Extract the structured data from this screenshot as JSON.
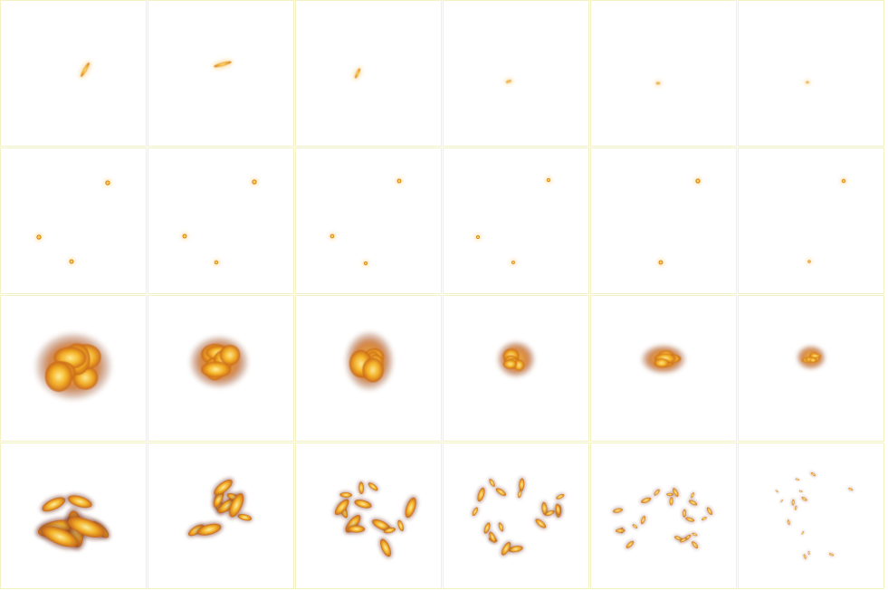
{
  "sprite_sheet": {
    "columns": 6,
    "rows": 4,
    "border_color": "#f4f1c4",
    "background_color": "#ffffff",
    "palette": {
      "core": "#fff3a0",
      "mid": "#f6b324",
      "edge": "#c8661a",
      "smoke": "#7a3a2a"
    },
    "animations": [
      {
        "name": "spark-streak",
        "frames": 6
      },
      {
        "name": "ember-trio",
        "frames": 6
      },
      {
        "name": "fire-burst",
        "frames": 6
      },
      {
        "name": "fire-scatter",
        "frames": 6
      }
    ]
  }
}
